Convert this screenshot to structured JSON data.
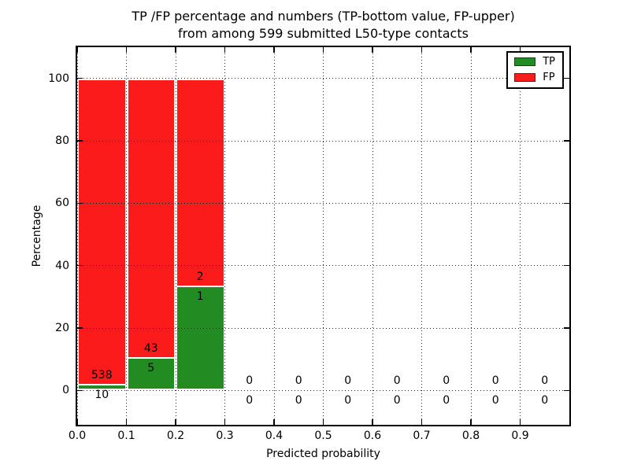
{
  "figure": {
    "title_line1": "TP /FP percentage and numbers (TP-bottom value, FP-upper)",
    "title_line2": "from among 599 submitted L50-type contacts"
  },
  "chart_data": {
    "type": "bar",
    "subtype": "stacked_percentage_histogram",
    "title": "TP /FP percentage and numbers (TP-bottom value, FP-upper)\nfrom among 599 submitted L50-type contacts",
    "xlabel": "Predicted probability",
    "ylabel": "Percentage",
    "xlim": [
      0.0,
      1.0
    ],
    "ylim": [
      -11,
      110
    ],
    "grid": "dotted",
    "x_tick_values": [
      0.0,
      0.1,
      0.2,
      0.3,
      0.4,
      0.5,
      0.6,
      0.7,
      0.8,
      0.9
    ],
    "x_tick_labels": [
      "0.0",
      "0.1",
      "0.2",
      "0.3",
      "0.4",
      "0.5",
      "0.6",
      "0.7",
      "0.8",
      "0.9"
    ],
    "y_tick_values": [
      0,
      20,
      40,
      60,
      80,
      100
    ],
    "y_tick_labels": [
      "0",
      "20",
      "40",
      "60",
      "80",
      "100"
    ],
    "total_contacts": 599,
    "legend": {
      "position": "upper_right",
      "entries": [
        {
          "label": "TP",
          "color": "#228b22"
        },
        {
          "label": "FP",
          "color": "#fb1b1b"
        }
      ]
    },
    "bins": [
      {
        "range": [
          0.0,
          0.1
        ],
        "tp": 10,
        "fp": 538
      },
      {
        "range": [
          0.1,
          0.2
        ],
        "tp": 5,
        "fp": 43
      },
      {
        "range": [
          0.2,
          0.3
        ],
        "tp": 1,
        "fp": 2
      },
      {
        "range": [
          0.3,
          0.4
        ],
        "tp": 0,
        "fp": 0
      },
      {
        "range": [
          0.4,
          0.5
        ],
        "tp": 0,
        "fp": 0
      },
      {
        "range": [
          0.5,
          0.6
        ],
        "tp": 0,
        "fp": 0
      },
      {
        "range": [
          0.6,
          0.7
        ],
        "tp": 0,
        "fp": 0
      },
      {
        "range": [
          0.7,
          0.8
        ],
        "tp": 0,
        "fp": 0
      },
      {
        "range": [
          0.8,
          0.9
        ],
        "tp": 0,
        "fp": 0
      },
      {
        "range": [
          0.9,
          1.0
        ],
        "tp": 0,
        "fp": 0
      }
    ],
    "colors": {
      "tp": "#228b22",
      "fp": "#fb1b1b",
      "bar_edge": "#ffffff",
      "grid": "#000000",
      "background": "#ffffff"
    }
  }
}
